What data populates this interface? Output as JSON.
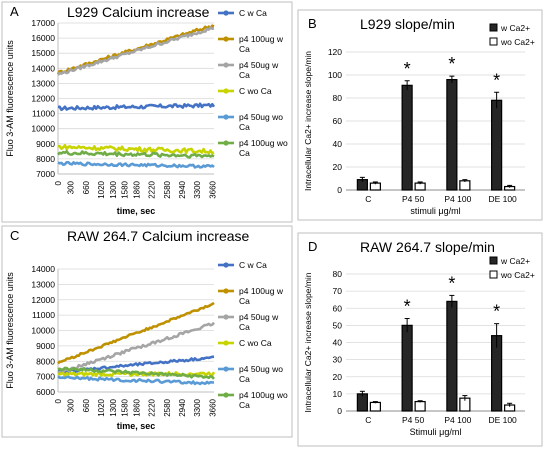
{
  "panels": [
    {
      "id": "A",
      "type": "line",
      "letter": "A",
      "title": "L929 Calcium increase",
      "xlabel": "time, sec",
      "ylabel": "Fluo 3-AM fluorescence units",
      "ylim": [
        7000,
        17000
      ],
      "ystep": 1000,
      "xlim": [
        0,
        3700
      ],
      "x_ticks": [
        0,
        300,
        660,
        1020,
        1300,
        1580,
        1860,
        2220,
        2580,
        2940,
        3300,
        3660
      ],
      "series": [
        {
          "name": "C w Ca",
          "color": "#4472c4",
          "start": 11350,
          "end": 11550,
          "noise": 120
        },
        {
          "name": "p4 100ug w Ca",
          "color": "#bf9000",
          "start": 13700,
          "end": 16850,
          "noise": 110
        },
        {
          "name": "p4 50ug w Ca",
          "color": "#a5a5a5",
          "start": 13600,
          "end": 16700,
          "noise": 100
        },
        {
          "name": "C wo Ca",
          "color": "#c8d400",
          "start": 8800,
          "end": 8500,
          "noise": 140
        },
        {
          "name": "p4 50ug wo Ca",
          "color": "#5b9bd5",
          "start": 7700,
          "end": 7500,
          "noise": 90
        },
        {
          "name": "p4 100ug wo Ca",
          "color": "#70ad47",
          "start": 8400,
          "end": 8200,
          "noise": 130
        }
      ]
    },
    {
      "id": "B",
      "type": "bar",
      "letter": "B",
      "title": "L929 slope/min",
      "xlabel": "stimuli μg/ml",
      "ylabel": "Intracellular Ca2+ increase slope/min",
      "ylim": [
        0,
        120
      ],
      "ystep": 20,
      "categories": [
        "C",
        "P4 50",
        "P4 100",
        "DE 100"
      ],
      "significance": [
        "",
        "*",
        "*",
        "*"
      ],
      "series": [
        {
          "name": "w Ca2+",
          "color": "#262626",
          "values": [
            9,
            91,
            96,
            78
          ],
          "errors": [
            2,
            4,
            3,
            7
          ]
        },
        {
          "name": "wo Ca2+",
          "color": "#ffffff",
          "values": [
            6,
            6,
            8,
            3
          ],
          "errors": [
            1,
            1,
            1,
            1
          ]
        }
      ]
    },
    {
      "id": "C",
      "type": "line",
      "letter": "C",
      "title": "RAW 264.7 Calcium increase",
      "xlabel": "time, sec",
      "ylabel": "Fluo 3-AM fluorescence units",
      "ylim": [
        6000,
        14000
      ],
      "ystep": 1000,
      "xlim": [
        0,
        3700
      ],
      "x_ticks": [
        0,
        300,
        660,
        1020,
        1300,
        1580,
        1860,
        2220,
        2580,
        2940,
        3300,
        3660
      ],
      "series": [
        {
          "name": "C w Ca",
          "color": "#4472c4",
          "start": 7300,
          "end": 8250,
          "noise": 80
        },
        {
          "name": "p4 100ug w Ca",
          "color": "#bf9000",
          "start": 7900,
          "end": 11750,
          "noise": 70
        },
        {
          "name": "p4 50ug w Ca",
          "color": "#a5a5a5",
          "start": 7250,
          "end": 10450,
          "noise": 90
        },
        {
          "name": "C wo Ca",
          "color": "#c8d400",
          "start": 7150,
          "end": 7200,
          "noise": 110
        },
        {
          "name": "p4 50ug wo Ca",
          "color": "#5b9bd5",
          "start": 6950,
          "end": 6550,
          "noise": 90
        },
        {
          "name": "p4 100ug wo Ca",
          "color": "#70ad47",
          "start": 7550,
          "end": 6950,
          "noise": 100
        }
      ]
    },
    {
      "id": "D",
      "type": "bar",
      "letter": "D",
      "title": "RAW 264.7 slope/min",
      "xlabel": "Stimuli μg/ml",
      "ylabel": "Intracellular Ca2+ increase slope/min",
      "ylim": [
        0,
        80
      ],
      "ystep": 10,
      "categories": [
        "C",
        "P4 50",
        "P4 100",
        "DE 100"
      ],
      "significance": [
        "",
        "*",
        "*",
        "*"
      ],
      "series": [
        {
          "name": "w Ca2+",
          "color": "#262626",
          "values": [
            10,
            50,
            64,
            44
          ],
          "errors": [
            1.5,
            4,
            3.5,
            7
          ]
        },
        {
          "name": "wo Ca2+",
          "color": "#ffffff",
          "values": [
            5,
            5.5,
            7.5,
            3.5
          ],
          "errors": [
            0.5,
            0.5,
            1.5,
            1
          ]
        }
      ]
    }
  ]
}
